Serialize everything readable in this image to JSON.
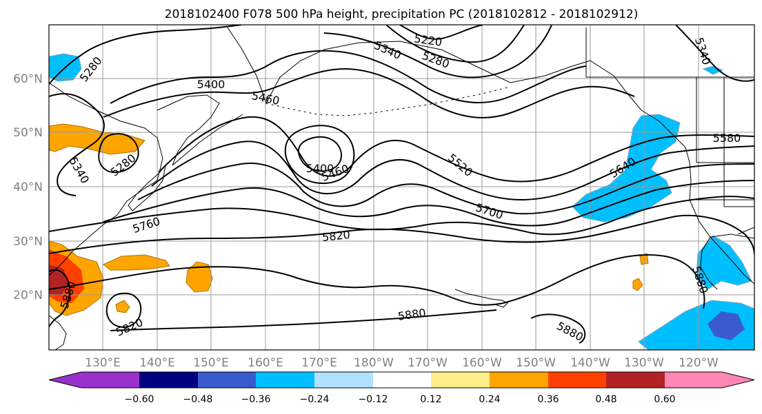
{
  "title": "2018102400 F078 500 hPa height, precipitation PC (2018102812 - 2018102912)",
  "lat_labels": [
    "60°N",
    "50°N",
    "40°N",
    "30°N",
    "20°N"
  ],
  "lon_labels": [
    "130°E",
    "140°E",
    "150°E",
    "160°E",
    "170°E",
    "180°W",
    "170°W",
    "160°W",
    "150°W",
    "140°W",
    "130°W",
    "120°W"
  ],
  "colorbar": {
    "ticks": [
      "−0.60",
      "−0.48",
      "−0.36",
      "−0.24",
      "−0.12",
      "0.12",
      "0.24",
      "0.36",
      "0.48",
      "0.60"
    ],
    "colors": [
      "#9932cc",
      "#000080",
      "#3a5bcd",
      "#00bfff",
      "#b0e2ff",
      "#ffffff",
      "#ffee8a",
      "#ffa500",
      "#ff4000",
      "#b22222",
      "#ff86b5"
    ]
  },
  "contour_labels": [
    "5220",
    "5280",
    "5340",
    "5400",
    "5460",
    "5520",
    "5580",
    "5640",
    "5700",
    "5760",
    "5820",
    "5880"
  ],
  "map_labels": {
    "l5220": "5220",
    "l5280a": "5280",
    "l5280b": "5280",
    "l5280c": "5280",
    "l5340a": "5340",
    "l5340b": "5340",
    "l5340c": "5340",
    "l5400a": "5400",
    "l5400b": "5400",
    "l5460a": "5460",
    "l5460b": "5460",
    "l5520": "5520",
    "l5580": "5580",
    "l5640": "5640",
    "l5700": "5700",
    "l5760": "5760",
    "l5820a": "5820",
    "l5820b": "5820",
    "l5880a": "5880",
    "l5880b": "5880",
    "l5880c": "5880",
    "l5880d": "5880"
  }
}
